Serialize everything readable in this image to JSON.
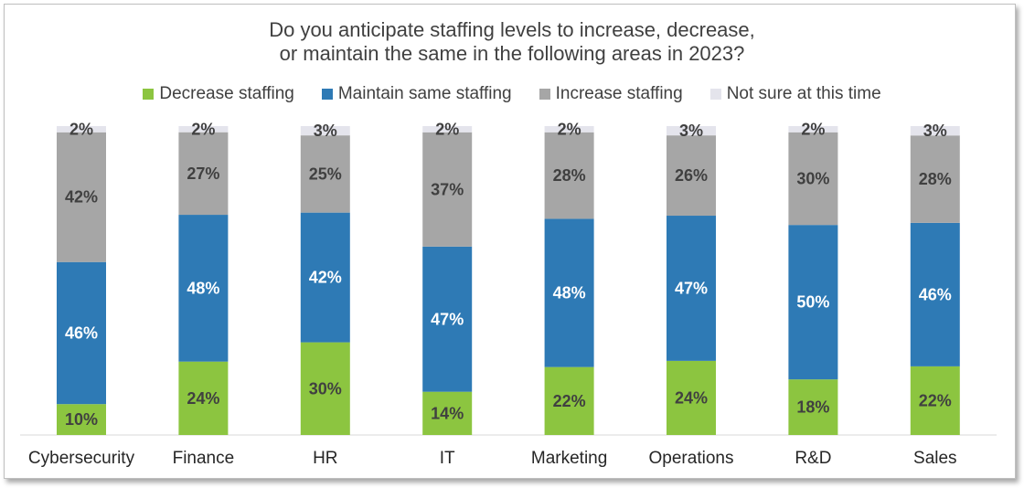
{
  "chart_data": {
    "type": "bar",
    "stacked": true,
    "percent_stacked": true,
    "title": "Do you anticipate staffing levels to increase, decrease, or maintain the same in the following areas in 2023?",
    "title_lines": [
      "Do you anticipate staffing levels to increase, decrease,",
      "or maintain the same in the following areas in 2023?"
    ],
    "xlabel": "",
    "ylabel": "",
    "legend_position": "top",
    "grid": false,
    "categories": [
      "Cybersecurity",
      "Finance",
      "HR",
      "IT",
      "Marketing",
      "Operations",
      "R&D",
      "Sales"
    ],
    "series": [
      {
        "name": "Decrease staffing",
        "color": "#8cc540",
        "label_color": "#404040",
        "values": [
          10,
          24,
          30,
          14,
          22,
          24,
          18,
          22
        ]
      },
      {
        "name": "Maintain same staffing",
        "color": "#2e7ab5",
        "label_color": "#ffffff",
        "values": [
          46,
          48,
          42,
          47,
          48,
          47,
          50,
          46
        ]
      },
      {
        "name": "Increase staffing",
        "color": "#a6a6a6",
        "label_color": "#404040",
        "values": [
          42,
          27,
          25,
          37,
          28,
          26,
          30,
          28
        ]
      },
      {
        "name": "Not sure at this time",
        "color": "#e4e4ec",
        "label_color": "#404040",
        "values": [
          2,
          2,
          3,
          2,
          2,
          3,
          2,
          3
        ]
      }
    ],
    "value_suffix": "%"
  }
}
